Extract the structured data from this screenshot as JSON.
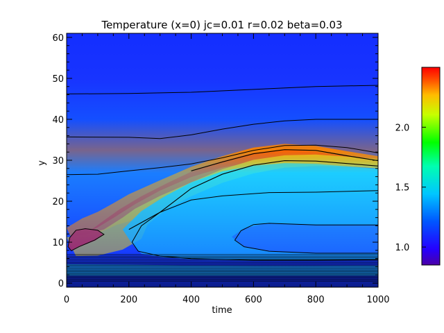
{
  "chart_data": [
    {
      "type": "heatmap",
      "title": "Temperature (x=0) jc=0.01 r=0.02 beta=0.03",
      "xlabel": "time",
      "ylabel": "y",
      "xlim": [
        0,
        1000
      ],
      "ylim": [
        -1,
        61
      ],
      "x_ticks": [
        "0",
        "200",
        "400",
        "600",
        "800",
        "1000"
      ],
      "y_ticks": [
        "0",
        "10",
        "20",
        "30",
        "40",
        "50",
        "60"
      ],
      "x_tick_values": [
        0,
        200,
        400,
        600,
        800,
        1000
      ],
      "y_tick_values": [
        0,
        10,
        20,
        30,
        40,
        50,
        60
      ],
      "contours": [
        {
          "level": "upper-1",
          "points": [
            [
              0,
              46.2
            ],
            [
              200,
              46.3
            ],
            [
              400,
              46.6
            ],
            [
              600,
              47.3
            ],
            [
              800,
              48.0
            ],
            [
              1000,
              48.3
            ]
          ]
        },
        {
          "level": "upper-2",
          "points": [
            [
              0,
              35.7
            ],
            [
              200,
              35.6
            ],
            [
              300,
              35.3
            ],
            [
              400,
              36.2
            ],
            [
              500,
              37.6
            ],
            [
              600,
              38.8
            ],
            [
              700,
              39.6
            ],
            [
              800,
              40.0
            ],
            [
              1000,
              40.0
            ]
          ]
        },
        {
          "level": "upper-3",
          "points": [
            [
              0,
              26.5
            ],
            [
              100,
              26.6
            ],
            [
              200,
              27.4
            ],
            [
              300,
              28.2
            ],
            [
              400,
              29.1
            ],
            [
              500,
              30.6
            ],
            [
              600,
              32.4
            ],
            [
              700,
              33.6
            ],
            [
              800,
              33.7
            ],
            [
              900,
              33.1
            ],
            [
              1000,
              31.8
            ]
          ]
        },
        {
          "level": "inner-hot",
          "points": [
            [
              400,
              27.4
            ],
            [
              500,
              29.6
            ],
            [
              600,
              31.6
            ],
            [
              700,
              32.6
            ],
            [
              800,
              32.4
            ],
            [
              900,
              31.1
            ],
            [
              1000,
              29.9
            ]
          ]
        },
        {
          "level": "inner-cool",
          "points": [
            [
              200,
              13.1
            ],
            [
              300,
              17.3
            ],
            [
              400,
              23.1
            ],
            [
              500,
              26.6
            ],
            [
              600,
              28.8
            ],
            [
              700,
              29.9
            ],
            [
              800,
              29.8
            ],
            [
              900,
              29.2
            ],
            [
              1000,
              28.6
            ]
          ]
        },
        {
          "level": "lobe-1",
          "points": [
            [
              1000,
              22.6
            ],
            [
              800,
              22.2
            ],
            [
              650,
              22.1
            ],
            [
              500,
              21.3
            ],
            [
              400,
              20.3
            ],
            [
              300,
              17.3
            ],
            [
              240,
              14.0
            ],
            [
              210,
              10.0
            ],
            [
              230,
              7.8
            ],
            [
              300,
              6.6
            ],
            [
              400,
              6.0
            ],
            [
              600,
              5.6
            ],
            [
              800,
              5.6
            ],
            [
              1000,
              5.7
            ]
          ]
        },
        {
          "level": "lobe-2",
          "points": [
            [
              1000,
              14.2
            ],
            [
              800,
              14.2
            ],
            [
              650,
              14.6
            ],
            [
              600,
              14.3
            ],
            [
              560,
              12.8
            ],
            [
              540,
              10.5
            ],
            [
              570,
              8.9
            ],
            [
              650,
              7.8
            ],
            [
              800,
              7.3
            ],
            [
              1000,
              7.3
            ]
          ]
        },
        {
          "level": "hot-spot",
          "points": [
            [
              10,
              11.1
            ],
            [
              30,
              12.9
            ],
            [
              60,
              13.3
            ],
            [
              100,
              12.9
            ],
            [
              120,
              11.9
            ],
            [
              90,
              10.5
            ],
            [
              40,
              8.9
            ],
            [
              15,
              7.9
            ],
            [
              5,
              8.9
            ],
            [
              10,
              11.1
            ]
          ]
        }
      ],
      "colorbar": {
        "ticks": [
          "1.0",
          "1.5",
          "2.0"
        ],
        "tick_values": [
          1.0,
          1.5,
          2.0
        ],
        "range": [
          0.85,
          2.5
        ]
      }
    }
  ]
}
